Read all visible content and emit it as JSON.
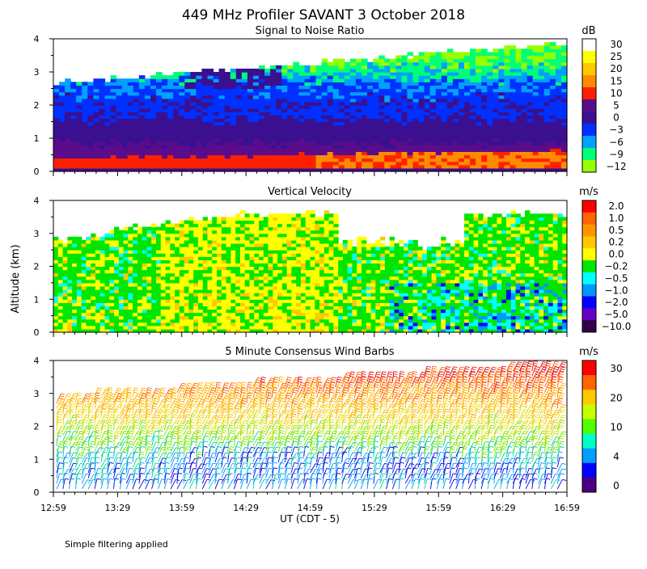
{
  "header": {
    "title": "449 MHz Profiler SAVANT  3 October 2018"
  },
  "footer": {
    "note": "Simple filtering applied"
  },
  "axis": {
    "ylabel": "Altitude (km)",
    "xlabel": "UT  (CDT - 5)",
    "xticks": [
      "12:59",
      "13:29",
      "13:59",
      "14:29",
      "14:59",
      "15:29",
      "15:59",
      "16:29",
      "16:59"
    ],
    "yticks": [
      "0",
      "1",
      "2",
      "3",
      "4"
    ]
  },
  "chart_data": [
    {
      "type": "heatmap",
      "title": "Signal to Noise Ratio",
      "units": "dB",
      "xlim": [
        "12:59",
        "16:59"
      ],
      "ylim": [
        0,
        4
      ],
      "colorbar_labels": [
        "30",
        "25",
        "20",
        "15",
        "10",
        "5",
        "0",
        "−3",
        "−6",
        "−9",
        "−12"
      ],
      "colorbar_colors": [
        "#ffffff",
        "#ffff00",
        "#ffc800",
        "#ff8c00",
        "#ff2000",
        "#5a0c8a",
        "#3a1090",
        "#0030ff",
        "#00a0ff",
        "#00ff78",
        "#96ff00"
      ],
      "layers": [
        {
          "altitude_km": [
            0.0,
            0.3
          ],
          "snr_db": "10 to 20"
        },
        {
          "altitude_km": [
            0.3,
            1.4
          ],
          "snr_db": "0 to 5"
        },
        {
          "altitude_km": [
            1.4,
            2.6
          ],
          "snr_db": "-3 to 0"
        },
        {
          "altitude_km": [
            2.6,
            3.8
          ],
          "snr_db": "-12 to -3"
        }
      ]
    },
    {
      "type": "heatmap",
      "title": "Vertical Velocity",
      "units": "m/s",
      "xlim": [
        "12:59",
        "16:59"
      ],
      "ylim": [
        0,
        4
      ],
      "colorbar_labels": [
        "2.0",
        "1.0",
        "0.5",
        "0.2",
        "0.0",
        "−0.2",
        "−0.5",
        "−1.0",
        "−2.0",
        "−5.0",
        "−10.0"
      ],
      "colorbar_colors": [
        "#ff0000",
        "#ff6400",
        "#ff9600",
        "#ffc800",
        "#ffff00",
        "#00e600",
        "#00ffff",
        "#0096ff",
        "#0000ff",
        "#6400c8",
        "#32004a"
      ]
    },
    {
      "type": "barbs",
      "title": "5 Minute Consensus Wind Barbs",
      "units": "m/s",
      "xlim": [
        "12:59",
        "16:59"
      ],
      "ylim": [
        0,
        4
      ],
      "colorbar_labels": [
        "30",
        "20",
        "10",
        "4",
        "0"
      ],
      "colorbar_colors": [
        "#ff0000",
        "#ff6400",
        "#ffc800",
        "#c8ff00",
        "#50ff00",
        "#00ffc8",
        "#00a0ff",
        "#0000ff",
        "#4b0082"
      ],
      "speed_profile": [
        {
          "altitude_km": 0.5,
          "speed_ms": 5
        },
        {
          "altitude_km": 1.5,
          "speed_ms": 12
        },
        {
          "altitude_km": 2.5,
          "speed_ms": 20
        },
        {
          "altitude_km": 3.5,
          "speed_ms": 28
        }
      ]
    }
  ]
}
